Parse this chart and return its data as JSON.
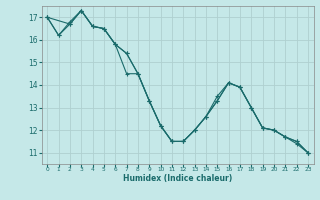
{
  "xlabel": "Humidex (Indice chaleur)",
  "ylabel": "",
  "background_color": "#c5e8e8",
  "grid_color": "#afd0d0",
  "line_color": "#1a6b6b",
  "xlim": [
    -0.5,
    23.5
  ],
  "ylim": [
    10.5,
    17.5
  ],
  "xticks": [
    0,
    1,
    2,
    3,
    4,
    5,
    6,
    7,
    8,
    9,
    10,
    11,
    12,
    13,
    14,
    15,
    16,
    17,
    18,
    19,
    20,
    21,
    22,
    23
  ],
  "yticks": [
    11,
    12,
    13,
    14,
    15,
    16,
    17
  ],
  "series": [
    {
      "x": [
        0,
        1,
        2,
        3,
        4,
        5,
        6,
        7,
        8,
        9,
        10,
        11,
        12,
        13,
        14,
        15,
        16,
        17,
        18,
        19,
        20,
        21,
        22,
        23
      ],
      "y": [
        17.0,
        16.2,
        16.7,
        17.3,
        16.6,
        16.5,
        15.8,
        15.4,
        14.5,
        13.3,
        12.2,
        11.5,
        11.5,
        12.0,
        12.6,
        13.3,
        14.1,
        13.9,
        13.0,
        12.1,
        12.0,
        11.7,
        11.5,
        11.0
      ]
    },
    {
      "x": [
        0,
        1,
        2,
        3,
        4,
        5,
        6,
        7,
        8,
        9,
        10,
        11,
        12,
        13,
        14,
        15,
        16,
        17,
        18,
        19,
        20,
        21,
        22,
        23
      ],
      "y": [
        17.0,
        16.2,
        16.8,
        17.3,
        16.6,
        16.5,
        15.8,
        15.4,
        14.5,
        13.3,
        12.2,
        11.5,
        11.5,
        12.0,
        12.6,
        13.5,
        14.1,
        13.9,
        13.0,
        12.1,
        12.0,
        11.7,
        11.4,
        11.0
      ]
    },
    {
      "x": [
        0,
        2,
        3,
        4,
        5,
        6,
        7,
        8,
        9,
        10,
        11,
        12,
        13,
        14,
        15,
        16,
        17,
        18,
        19,
        20,
        21,
        22,
        23
      ],
      "y": [
        17.0,
        16.7,
        17.3,
        16.6,
        16.5,
        15.8,
        14.5,
        14.5,
        13.3,
        12.2,
        11.5,
        11.5,
        12.0,
        12.6,
        13.3,
        14.1,
        13.9,
        13.0,
        12.1,
        12.0,
        11.7,
        11.5,
        11.0
      ]
    }
  ]
}
